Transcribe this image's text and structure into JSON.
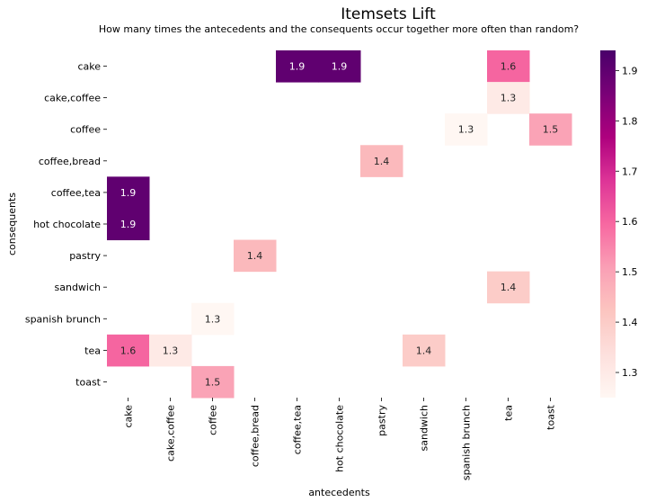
{
  "chart_data": {
    "type": "heatmap",
    "title": "Itemsets Lift",
    "subtitle": "How many times the antecedents and the consequents occur together more often than random?",
    "xlabel": "antecedents",
    "ylabel": "consequents",
    "x_categories": [
      "cake",
      "cake,coffee",
      "coffee",
      "coffee,bread",
      "coffee,tea",
      "hot chocolate",
      "pastry",
      "sandwich",
      "spanish brunch",
      "tea",
      "toast"
    ],
    "y_categories": [
      "cake",
      "cake,coffee",
      "coffee",
      "coffee,bread",
      "coffee,tea",
      "hot chocolate",
      "pastry",
      "sandwich",
      "spanish brunch",
      "tea",
      "toast"
    ],
    "cells": [
      {
        "x": "coffee,tea",
        "y": "cake",
        "value": 1.9,
        "label": "1.9"
      },
      {
        "x": "hot chocolate",
        "y": "cake",
        "value": 1.9,
        "label": "1.9"
      },
      {
        "x": "tea",
        "y": "cake",
        "value": 1.6,
        "label": "1.6"
      },
      {
        "x": "tea",
        "y": "cake,coffee",
        "value": 1.3,
        "label": "1.3"
      },
      {
        "x": "spanish brunch",
        "y": "coffee",
        "value": 1.25,
        "label": "1.3"
      },
      {
        "x": "toast",
        "y": "coffee",
        "value": 1.5,
        "label": "1.5"
      },
      {
        "x": "pastry",
        "y": "coffee,bread",
        "value": 1.45,
        "label": "1.4"
      },
      {
        "x": "cake",
        "y": "coffee,tea",
        "value": 1.9,
        "label": "1.9"
      },
      {
        "x": "cake",
        "y": "hot chocolate",
        "value": 1.9,
        "label": "1.9"
      },
      {
        "x": "coffee,bread",
        "y": "pastry",
        "value": 1.45,
        "label": "1.4"
      },
      {
        "x": "tea",
        "y": "sandwich",
        "value": 1.4,
        "label": "1.4"
      },
      {
        "x": "coffee",
        "y": "spanish brunch",
        "value": 1.25,
        "label": "1.3"
      },
      {
        "x": "cake",
        "y": "tea",
        "value": 1.6,
        "label": "1.6"
      },
      {
        "x": "cake,coffee",
        "y": "tea",
        "value": 1.3,
        "label": "1.3"
      },
      {
        "x": "sandwich",
        "y": "tea",
        "value": 1.4,
        "label": "1.4"
      },
      {
        "x": "coffee",
        "y": "toast",
        "value": 1.5,
        "label": "1.5"
      }
    ],
    "colorbar": {
      "min": 1.25,
      "max": 1.94,
      "ticks": [
        "1.3",
        "1.4",
        "1.5",
        "1.6",
        "1.7",
        "1.8",
        "1.9"
      ],
      "colormap": "RdPu",
      "stops": [
        "#fff7f3",
        "#fde0dd",
        "#fcc5c0",
        "#fa9fb5",
        "#f768a1",
        "#dd3497",
        "#ae017e",
        "#7a0177",
        "#49006a"
      ]
    },
    "grid": false,
    "legend": "colorbar-right"
  }
}
